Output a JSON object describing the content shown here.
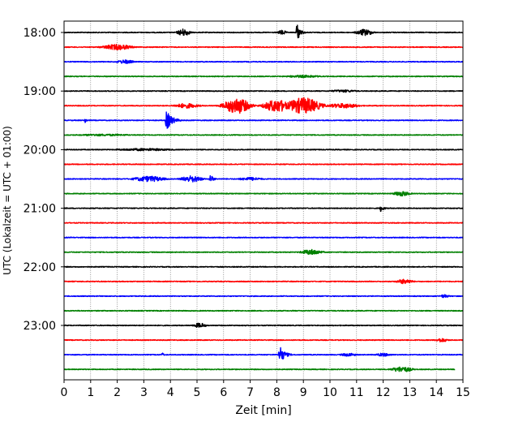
{
  "chart_data": {
    "type": "line",
    "title": "",
    "xlabel": "Zeit  [min]",
    "ylabel": "UTC (Lokalzeit = UTC + 01:00)",
    "xlim": [
      0,
      15
    ],
    "x_ticks": [
      "0",
      "1",
      "2",
      "3",
      "4",
      "5",
      "6",
      "7",
      "8",
      "9",
      "10",
      "11",
      "12",
      "13",
      "14",
      "15"
    ],
    "y_ticks": [
      "18:00",
      "19:00",
      "20:00",
      "21:00",
      "22:00",
      "23:00"
    ],
    "grid": "vertical dotted at each minute",
    "colors": [
      "#000000",
      "#ff0000",
      "#0000ff",
      "#008000"
    ],
    "noise_amplitude": 0.5,
    "series": [
      {
        "start": "18:00",
        "color": "#000000",
        "events": [
          {
            "t": 4.5,
            "amp": 4.5,
            "dur": 0.6,
            "shape": "burst"
          },
          {
            "t": 8.2,
            "amp": 3,
            "dur": 0.4,
            "shape": "burst"
          },
          {
            "t": 8.75,
            "amp": 12,
            "dur": 0.35,
            "shape": "spike"
          },
          {
            "t": 11.3,
            "amp": 4,
            "dur": 0.8,
            "shape": "burst"
          }
        ]
      },
      {
        "start": "18:15",
        "color": "#ff0000",
        "events": [
          {
            "t": 2.0,
            "amp": 3.5,
            "dur": 1.4,
            "shape": "burst"
          }
        ]
      },
      {
        "start": "18:30",
        "color": "#0000ff",
        "events": [
          {
            "t": 2.3,
            "amp": 2.5,
            "dur": 0.8,
            "shape": "burst"
          }
        ]
      },
      {
        "start": "18:45",
        "color": "#008000",
        "events": [
          {
            "t": 9.0,
            "amp": 1.5,
            "dur": 2.0,
            "shape": "burst"
          }
        ]
      },
      {
        "start": "19:00",
        "color": "#000000",
        "events": [
          {
            "t": 10.5,
            "amp": 1.5,
            "dur": 1.5,
            "shape": "burst"
          }
        ]
      },
      {
        "start": "19:15",
        "color": "#ff0000",
        "events": [
          {
            "t": 4.6,
            "amp": 3,
            "dur": 1.2,
            "shape": "burst"
          },
          {
            "t": 6.5,
            "amp": 10,
            "dur": 1.2,
            "shape": "burst"
          },
          {
            "t": 8.0,
            "amp": 8,
            "dur": 1.2,
            "shape": "burst"
          },
          {
            "t": 9.0,
            "amp": 10,
            "dur": 1.6,
            "shape": "burst"
          },
          {
            "t": 10.5,
            "amp": 3,
            "dur": 1.5,
            "shape": "burst"
          }
        ]
      },
      {
        "start": "19:30",
        "color": "#0000ff",
        "events": [
          {
            "t": 0.8,
            "amp": 4,
            "dur": 0.15,
            "shape": "spike"
          },
          {
            "t": 3.85,
            "amp": 12,
            "dur": 0.6,
            "shape": "spike"
          }
        ]
      },
      {
        "start": "19:45",
        "color": "#008000",
        "events": [
          {
            "t": 1.5,
            "amp": 1.2,
            "dur": 3.0,
            "shape": "burst"
          }
        ]
      },
      {
        "start": "20:00",
        "color": "#000000",
        "events": [
          {
            "t": 3.0,
            "amp": 1.5,
            "dur": 3.0,
            "shape": "burst"
          }
        ]
      },
      {
        "start": "20:15",
        "color": "#ff0000",
        "events": []
      },
      {
        "start": "20:30",
        "color": "#0000ff",
        "events": [
          {
            "t": 3.2,
            "amp": 3.5,
            "dur": 1.5,
            "shape": "burst"
          },
          {
            "t": 4.8,
            "amp": 4,
            "dur": 1.0,
            "shape": "burst"
          },
          {
            "t": 5.5,
            "amp": 6,
            "dur": 0.3,
            "shape": "spike"
          },
          {
            "t": 7.0,
            "amp": 2,
            "dur": 1.2,
            "shape": "burst"
          }
        ]
      },
      {
        "start": "20:45",
        "color": "#008000",
        "events": [
          {
            "t": 12.7,
            "amp": 3,
            "dur": 0.8,
            "shape": "burst"
          }
        ]
      },
      {
        "start": "21:00",
        "color": "#000000",
        "events": [
          {
            "t": 11.9,
            "amp": 4.5,
            "dur": 0.35,
            "shape": "spike"
          }
        ]
      },
      {
        "start": "21:15",
        "color": "#ff0000",
        "events": []
      },
      {
        "start": "21:30",
        "color": "#0000ff",
        "events": []
      },
      {
        "start": "21:45",
        "color": "#008000",
        "events": [
          {
            "t": 9.3,
            "amp": 3.5,
            "dur": 1.0,
            "shape": "burst"
          }
        ]
      },
      {
        "start": "22:00",
        "color": "#000000",
        "events": []
      },
      {
        "start": "22:15",
        "color": "#ff0000",
        "events": [
          {
            "t": 12.8,
            "amp": 3,
            "dur": 0.8,
            "shape": "burst"
          }
        ]
      },
      {
        "start": "22:30",
        "color": "#0000ff",
        "events": [
          {
            "t": 14.3,
            "amp": 2,
            "dur": 0.5,
            "shape": "burst"
          }
        ]
      },
      {
        "start": "22:45",
        "color": "#008000",
        "events": []
      },
      {
        "start": "23:00",
        "color": "#000000",
        "events": [
          {
            "t": 5.1,
            "amp": 3,
            "dur": 0.6,
            "shape": "burst"
          }
        ]
      },
      {
        "start": "23:15",
        "color": "#ff0000",
        "events": [
          {
            "t": 14.2,
            "amp": 2.5,
            "dur": 0.6,
            "shape": "burst"
          }
        ]
      },
      {
        "start": "23:30",
        "color": "#0000ff",
        "events": [
          {
            "t": 3.7,
            "amp": 3,
            "dur": 0.15,
            "shape": "spike"
          },
          {
            "t": 8.1,
            "amp": 12,
            "dur": 0.5,
            "shape": "spike"
          },
          {
            "t": 10.7,
            "amp": 2,
            "dur": 0.8,
            "shape": "burst"
          },
          {
            "t": 12.0,
            "amp": 2,
            "dur": 0.8,
            "shape": "burst"
          }
        ]
      },
      {
        "start": "23:45",
        "color": "#008000",
        "events": [
          {
            "t": 12.7,
            "amp": 3.5,
            "dur": 1.0,
            "shape": "burst"
          }
        ],
        "end_min": 14.7
      }
    ]
  }
}
